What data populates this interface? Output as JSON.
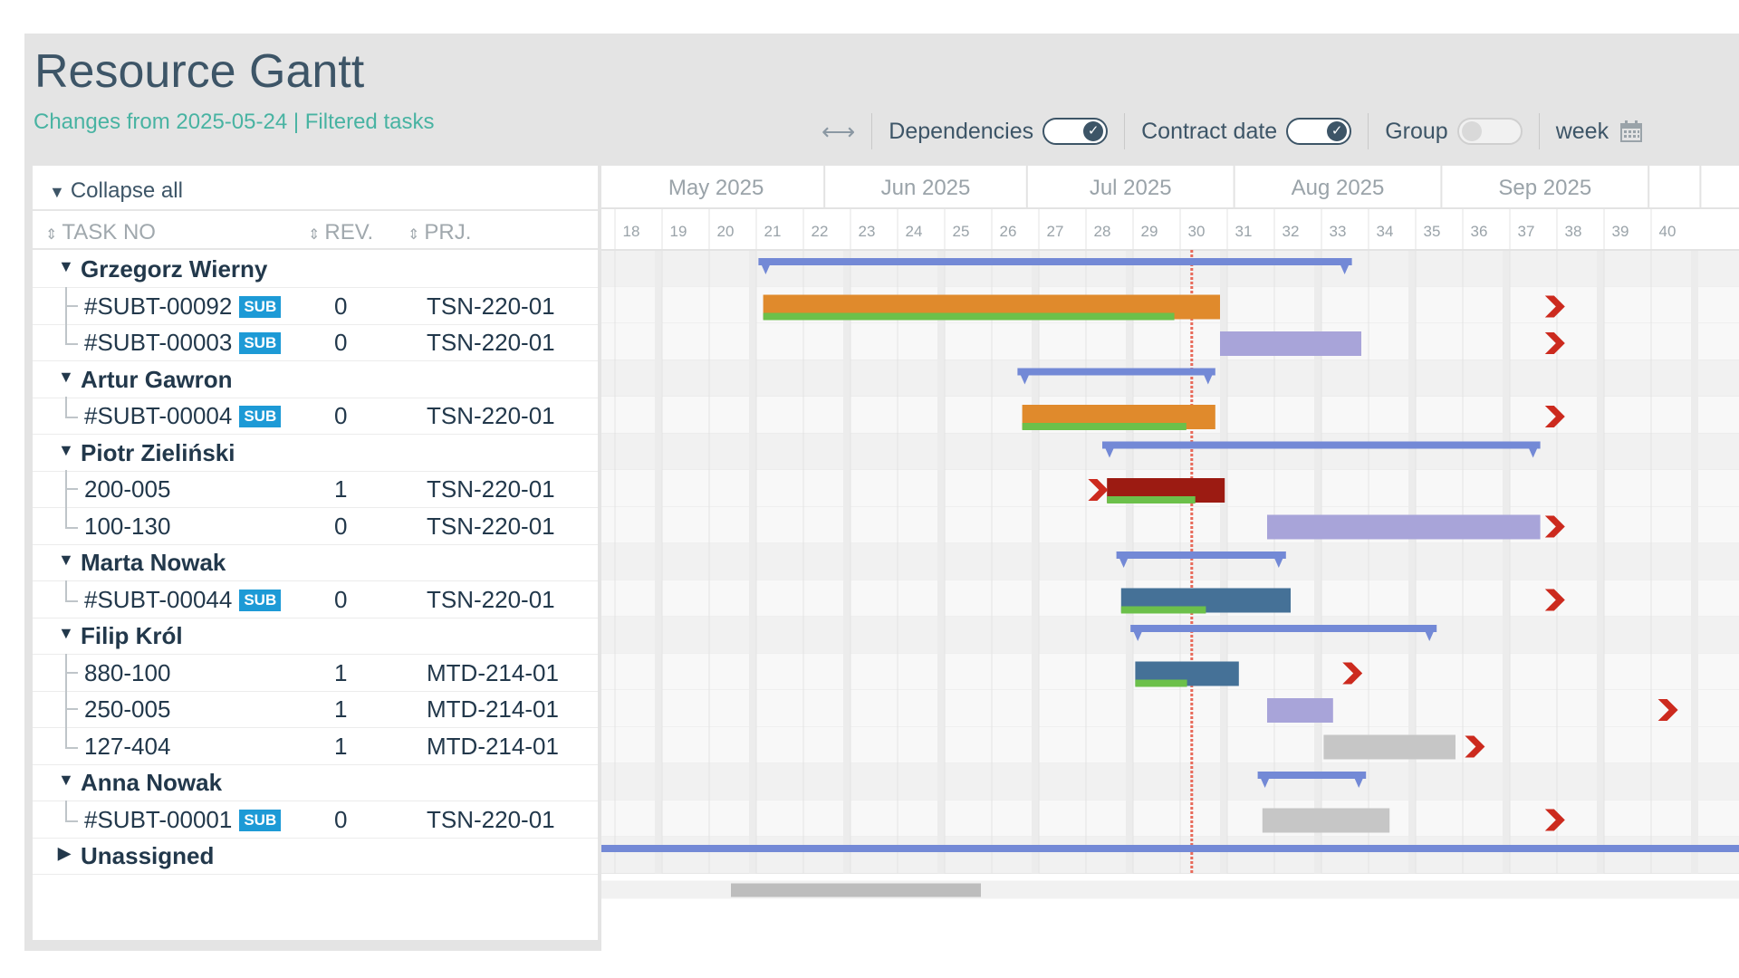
{
  "header": {
    "title": "Resource Gantt",
    "subtitle": "Changes from 2025-05-24 | Filtered tasks"
  },
  "toolbar": {
    "expand_icon": "horizontal-arrows-icon",
    "dependencies_label": "Dependencies",
    "dependencies_on": true,
    "contract_label": "Contract date",
    "contract_on": true,
    "group_label": "Group",
    "group_on": false,
    "scale_label": "week",
    "calendar_icon": "calendar-icon"
  },
  "left": {
    "collapse_label": "Collapse all",
    "columns": {
      "task": "TASK NO",
      "rev": "REV.",
      "prj": "PRJ."
    },
    "rows": [
      {
        "type": "group",
        "name": "Grzegorz Wierny"
      },
      {
        "type": "task",
        "task": "#SUBT-00092",
        "sub": "SUB",
        "rev": "0",
        "prj": "TSN-220-01"
      },
      {
        "type": "task",
        "task": "#SUBT-00003",
        "sub": "SUB",
        "rev": "0",
        "prj": "TSN-220-01",
        "last": true
      },
      {
        "type": "group",
        "name": "Artur Gawron"
      },
      {
        "type": "task",
        "task": "#SUBT-00004",
        "sub": "SUB",
        "rev": "0",
        "prj": "TSN-220-01",
        "last": true
      },
      {
        "type": "group",
        "name": "Piotr Zieliński"
      },
      {
        "type": "task",
        "task": "200-005",
        "rev": "1",
        "prj": "TSN-220-01"
      },
      {
        "type": "task",
        "task": "100-130",
        "rev": "0",
        "prj": "TSN-220-01",
        "last": true
      },
      {
        "type": "group",
        "name": "Marta Nowak"
      },
      {
        "type": "task",
        "task": "#SUBT-00044",
        "sub": "SUB",
        "rev": "0",
        "prj": "TSN-220-01",
        "last": true
      },
      {
        "type": "group",
        "name": "Filip Król"
      },
      {
        "type": "task",
        "task": "880-100",
        "rev": "1",
        "prj": "MTD-214-01"
      },
      {
        "type": "task",
        "task": "250-005",
        "rev": "1",
        "prj": "MTD-214-01"
      },
      {
        "type": "task",
        "task": "127-404",
        "rev": "1",
        "prj": "MTD-214-01",
        "last": true
      },
      {
        "type": "group",
        "name": "Anna Nowak"
      },
      {
        "type": "task",
        "task": "#SUBT-00001",
        "sub": "SUB",
        "rev": "0",
        "prj": "TSN-220-01",
        "last": true
      },
      {
        "type": "group",
        "name": "Unassigned",
        "collapsed": true
      }
    ]
  },
  "timeline": {
    "months": [
      {
        "label": "May 2025",
        "start": 18,
        "end": 22.6
      },
      {
        "label": "Jun 2025",
        "start": 22.6,
        "end": 26.9
      },
      {
        "label": "Jul 2025",
        "start": 26.9,
        "end": 31.3
      },
      {
        "label": "Aug 2025",
        "start": 31.3,
        "end": 35.7
      },
      {
        "label": "Sep 2025",
        "start": 35.7,
        "end": 40.1
      },
      {
        "label": "",
        "start": 40.1,
        "end": 41.2
      }
    ],
    "weeks": [
      18,
      19,
      20,
      21,
      22,
      23,
      24,
      25,
      26,
      27,
      28,
      29,
      30,
      31,
      32,
      33,
      34,
      35,
      36,
      37,
      38,
      39,
      40
    ],
    "today_week": 30.4,
    "colors": {
      "plan": "#7389d6",
      "orange": "#e08a2c",
      "green": "#6cc04a",
      "lavender": "#a8a4d9",
      "darkred": "#9c1b12",
      "steel": "#457197",
      "grey": "#c6c6c6",
      "marker": "#cc2a1e",
      "today": "#e86a5a"
    },
    "rows": [
      {
        "summary": [
          21.2,
          33.8
        ]
      },
      {
        "bars": [
          {
            "start": 21.3,
            "end": 31.0,
            "color": "orange",
            "progress": 0.9
          }
        ],
        "contract": 37.9
      },
      {
        "bars": [
          {
            "start": 31.0,
            "end": 34.0,
            "color": "lavender"
          }
        ],
        "contract": 37.9
      },
      {
        "summary": [
          26.7,
          30.9
        ]
      },
      {
        "bars": [
          {
            "start": 26.8,
            "end": 30.9,
            "color": "orange",
            "progress": 0.85
          }
        ],
        "contract": 37.9
      },
      {
        "summary": [
          28.5,
          37.8
        ]
      },
      {
        "bars": [
          {
            "start": 28.6,
            "end": 31.1,
            "color": "darkred",
            "progress": 0.75
          }
        ],
        "contract": 28.2
      },
      {
        "bars": [
          {
            "start": 32.0,
            "end": 37.8,
            "color": "lavender"
          }
        ],
        "contract": 37.9
      },
      {
        "summary": [
          28.8,
          32.4
        ]
      },
      {
        "bars": [
          {
            "start": 28.9,
            "end": 32.5,
            "color": "steel",
            "progress": 0.5
          }
        ],
        "contract": 37.9
      },
      {
        "summary": [
          29.1,
          35.6
        ]
      },
      {
        "bars": [
          {
            "start": 29.2,
            "end": 31.4,
            "color": "steel",
            "progress": 0.5
          }
        ],
        "contract": 33.6
      },
      {
        "bars": [
          {
            "start": 32.0,
            "end": 33.4,
            "color": "lavender"
          }
        ],
        "contract": 40.3
      },
      {
        "bars": [
          {
            "start": 33.2,
            "end": 36.0,
            "color": "grey"
          }
        ],
        "contract": 36.2
      },
      {
        "summary": [
          31.8,
          34.1
        ]
      },
      {
        "bars": [
          {
            "start": 31.9,
            "end": 34.6,
            "color": "grey"
          }
        ],
        "contract": 37.9
      },
      {
        "summary_full": true
      }
    ]
  }
}
